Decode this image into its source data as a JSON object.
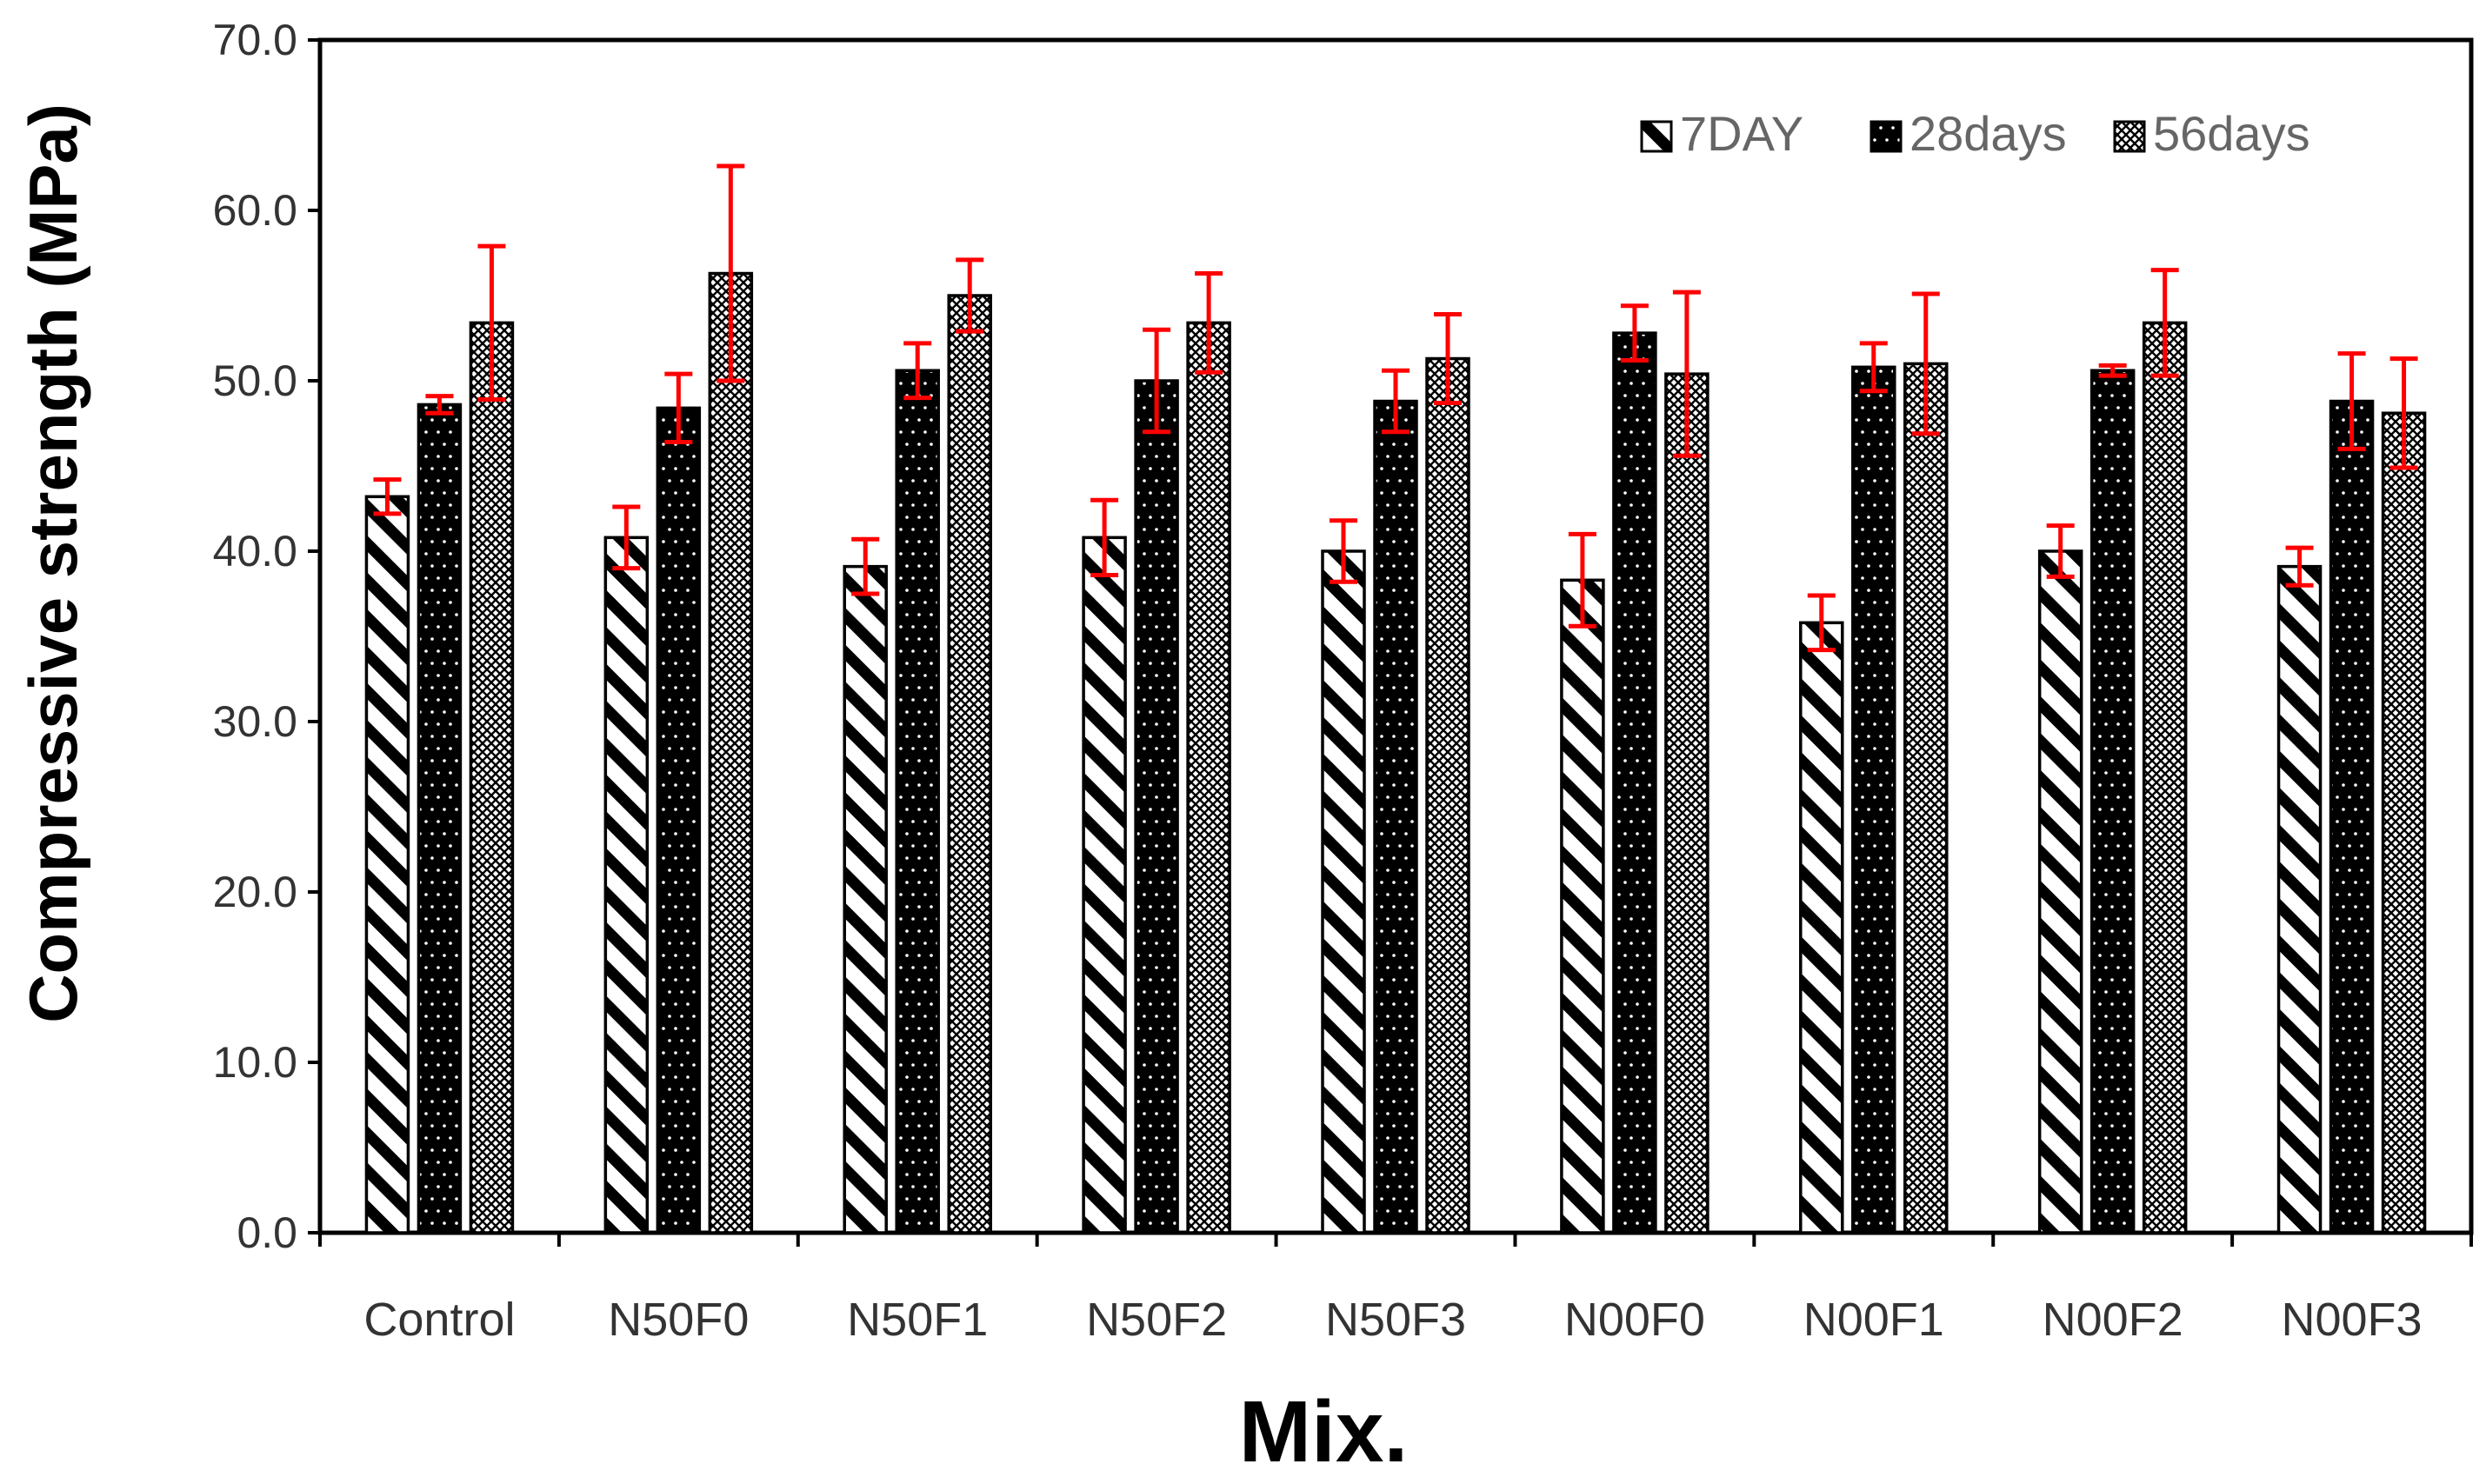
{
  "chart_data": {
    "type": "bar",
    "title": "",
    "xlabel": "Mix.",
    "ylabel": "Compressive strength (MPa)",
    "ylim": [
      0,
      70
    ],
    "ytick_step": 10,
    "ytick_labels": [
      "0.0",
      "10.0",
      "20.0",
      "30.0",
      "40.0",
      "50.0",
      "60.0",
      "70.0"
    ],
    "grid": false,
    "legend_position": "top-right",
    "categories": [
      "Control",
      "N50F0",
      "N50F1",
      "N50F2",
      "N50F3",
      "N00F0",
      "N00F1",
      "N00F2",
      "N00F3"
    ],
    "series": [
      {
        "name": "7DAY",
        "pattern": "diagonal-stripes",
        "values": [
          43.2,
          40.8,
          39.1,
          40.8,
          40.0,
          38.3,
          35.8,
          40.0,
          39.1
        ],
        "errors": [
          1.0,
          1.8,
          1.6,
          2.2,
          1.8,
          2.7,
          1.6,
          1.5,
          1.1
        ]
      },
      {
        "name": "28days",
        "pattern": "black-dotted",
        "values": [
          48.6,
          48.4,
          50.6,
          50.0,
          48.8,
          52.8,
          50.8,
          50.6,
          48.8
        ],
        "errors": [
          0.5,
          2.0,
          1.6,
          3.0,
          1.8,
          1.6,
          1.4,
          0.3,
          2.8
        ]
      },
      {
        "name": "56days",
        "pattern": "crosshatch",
        "values": [
          53.4,
          56.3,
          55.0,
          53.4,
          51.3,
          50.4,
          51.0,
          53.4,
          48.1
        ],
        "errors": [
          4.5,
          6.3,
          2.1,
          2.9,
          2.6,
          4.8,
          4.1,
          3.1,
          3.2
        ]
      }
    ],
    "colors": {
      "bar_fill_solid": "#000000",
      "bar_outline": "#000000",
      "error_bar": "#ff0000",
      "axis": "#000000",
      "tick_text": "#333333",
      "legend_text": "#666666"
    }
  }
}
